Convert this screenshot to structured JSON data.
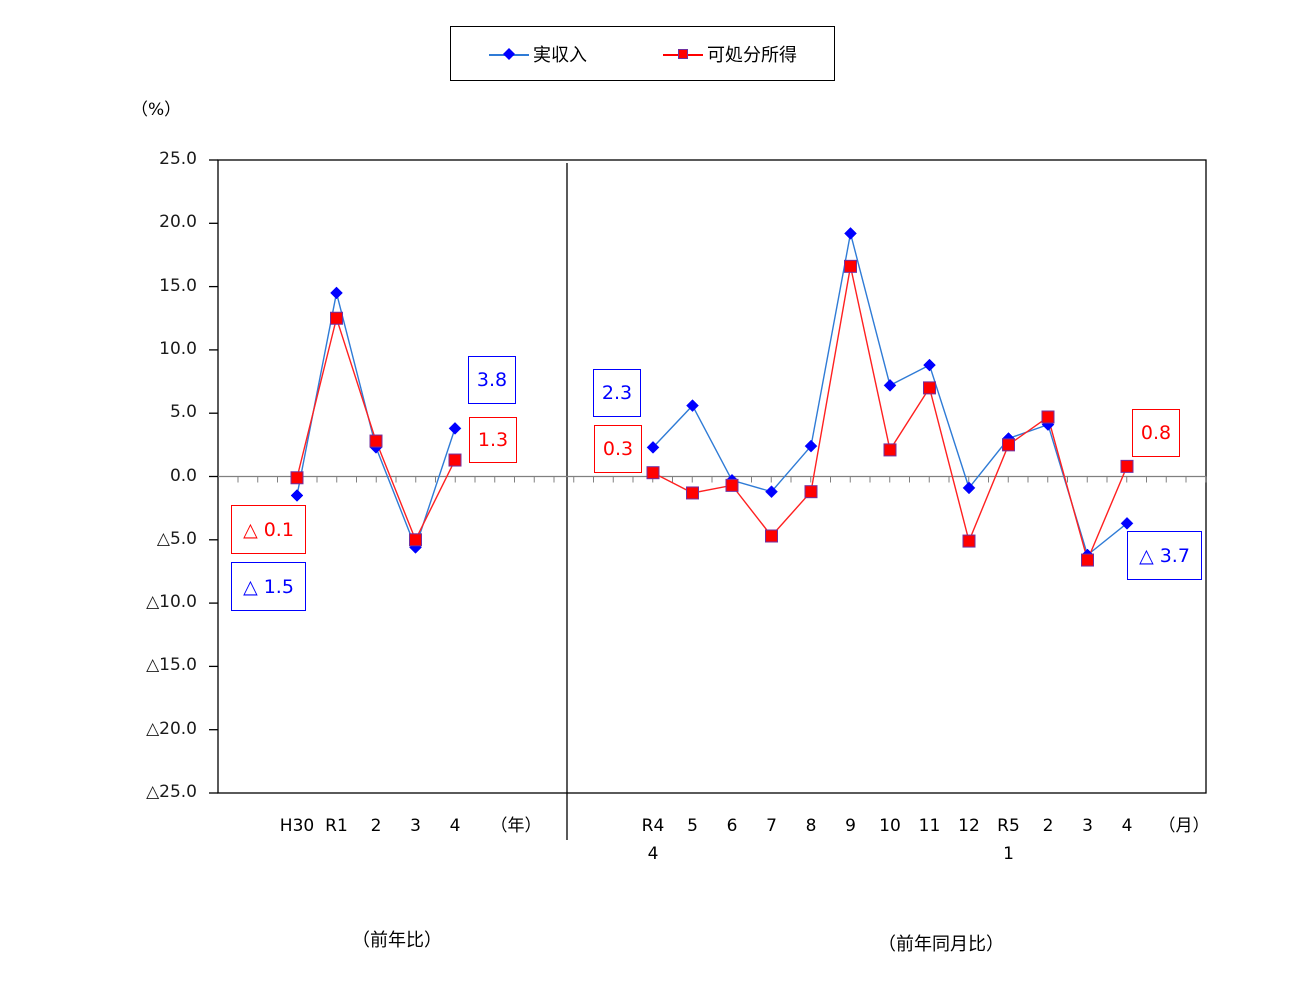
{
  "chart_data": {
    "type": "line",
    "title": "",
    "ylabel": "(%)",
    "ylim": [
      -25,
      25
    ],
    "ytick_step": 5,
    "ytick_labels": [
      "25.0",
      "20.0",
      "15.0",
      "10.0",
      "5.0",
      "0.0",
      "△5.0",
      "△10.0",
      "△15.0",
      "△20.0",
      "△25.0"
    ],
    "negative_prefix": "△",
    "legend_position": "top",
    "grid": false,
    "panels": [
      {
        "name": "annual",
        "caption": "（前年比）",
        "unit_label": "（年）",
        "categories": [
          "H30",
          "R1",
          "2",
          "3",
          "4"
        ],
        "series": [
          {
            "name": "実収入",
            "values": [
              -1.5,
              14.5,
              2.3,
              -5.6,
              3.8
            ]
          },
          {
            "name": "可処分所得",
            "values": [
              -0.1,
              12.5,
              2.8,
              -5.0,
              1.3
            ]
          }
        ]
      },
      {
        "name": "monthly",
        "caption": "（前年同月比）",
        "unit_label": "（月）",
        "categories": [
          "R4\n4",
          "5",
          "6",
          "7",
          "8",
          "9",
          "10",
          "11",
          "12",
          "R5\n1",
          "2",
          "3",
          "4"
        ],
        "series": [
          {
            "name": "実収入",
            "values": [
              2.3,
              5.6,
              -0.3,
              -1.2,
              2.4,
              19.2,
              7.2,
              8.8,
              -0.9,
              3.0,
              4.1,
              -6.2,
              -3.7
            ]
          },
          {
            "name": "可処分所得",
            "values": [
              0.3,
              -1.3,
              -0.7,
              -4.7,
              -1.2,
              16.6,
              2.1,
              7.0,
              -5.1,
              2.5,
              4.7,
              -6.6,
              0.8
            ]
          }
        ]
      }
    ],
    "annotations": [
      {
        "text": "△ 0.1",
        "series": "可処分所得",
        "panel": "annual",
        "category": "H30"
      },
      {
        "text": "△ 1.5",
        "series": "実収入",
        "panel": "annual",
        "category": "H30"
      },
      {
        "text": "3.8",
        "series": "実収入",
        "panel": "annual",
        "category": "4"
      },
      {
        "text": "1.3",
        "series": "可処分所得",
        "panel": "annual",
        "category": "4"
      },
      {
        "text": "2.3",
        "series": "実収入",
        "panel": "monthly",
        "category": "R4 4"
      },
      {
        "text": "0.3",
        "series": "可処分所得",
        "panel": "monthly",
        "category": "R4 4"
      },
      {
        "text": "0.8",
        "series": "可処分所得",
        "panel": "monthly",
        "category": "4"
      },
      {
        "text": "△ 3.7",
        "series": "実収入",
        "panel": "monthly",
        "category": "4"
      }
    ]
  },
  "legend": {
    "items": [
      {
        "label": "実収入",
        "line_color": "#2f7bd6",
        "marker_color": "#0000ff",
        "marker": "diamond"
      },
      {
        "label": "可処分所得",
        "line_color": "#ff0000",
        "marker_color": "#ff0000",
        "marker": "square"
      }
    ]
  },
  "colors": {
    "income_line": "#2f7bd6",
    "income_marker": "#0000ff",
    "disposable_line": "#ff2020",
    "disposable_marker": "#ff0000",
    "marker_border": "#7030a0",
    "axis": "#000000",
    "zero_line": "#808080"
  },
  "labels": {
    "unit": "（%）",
    "annual_caption": "（前年比）",
    "monthly_caption": "（前年同月比）",
    "annual_unit": "（年）",
    "monthly_unit": "（月）"
  }
}
